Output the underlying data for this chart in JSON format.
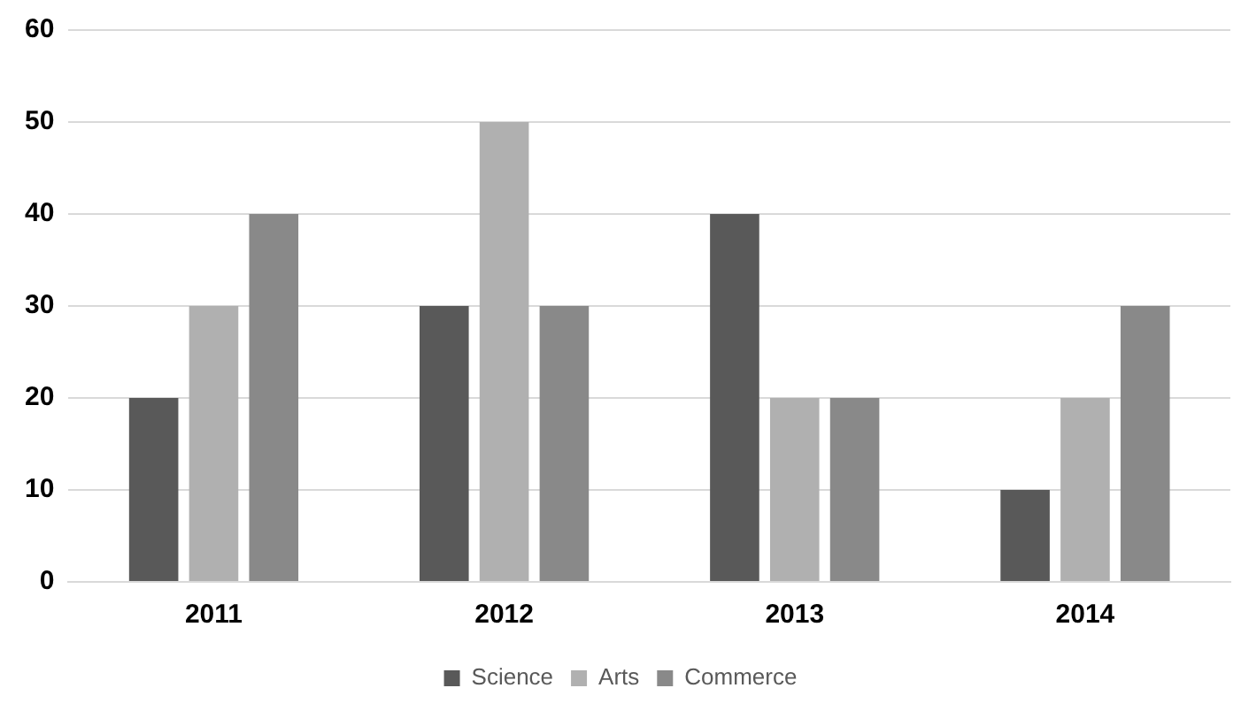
{
  "chart_data": {
    "type": "bar",
    "categories": [
      "2011",
      "2012",
      "2013",
      "2014"
    ],
    "series": [
      {
        "name": "Science",
        "color": "#595959",
        "values": [
          20,
          30,
          40,
          10
        ]
      },
      {
        "name": "Arts",
        "color": "#b0b0b0",
        "values": [
          30,
          50,
          20,
          20
        ]
      },
      {
        "name": "Commerce",
        "color": "#898989",
        "values": [
          40,
          30,
          20,
          30
        ]
      }
    ],
    "ylim": [
      0,
      60
    ],
    "yticks": [
      0,
      10,
      20,
      30,
      40,
      50,
      60
    ],
    "grid": "y",
    "legend": "bottom"
  }
}
